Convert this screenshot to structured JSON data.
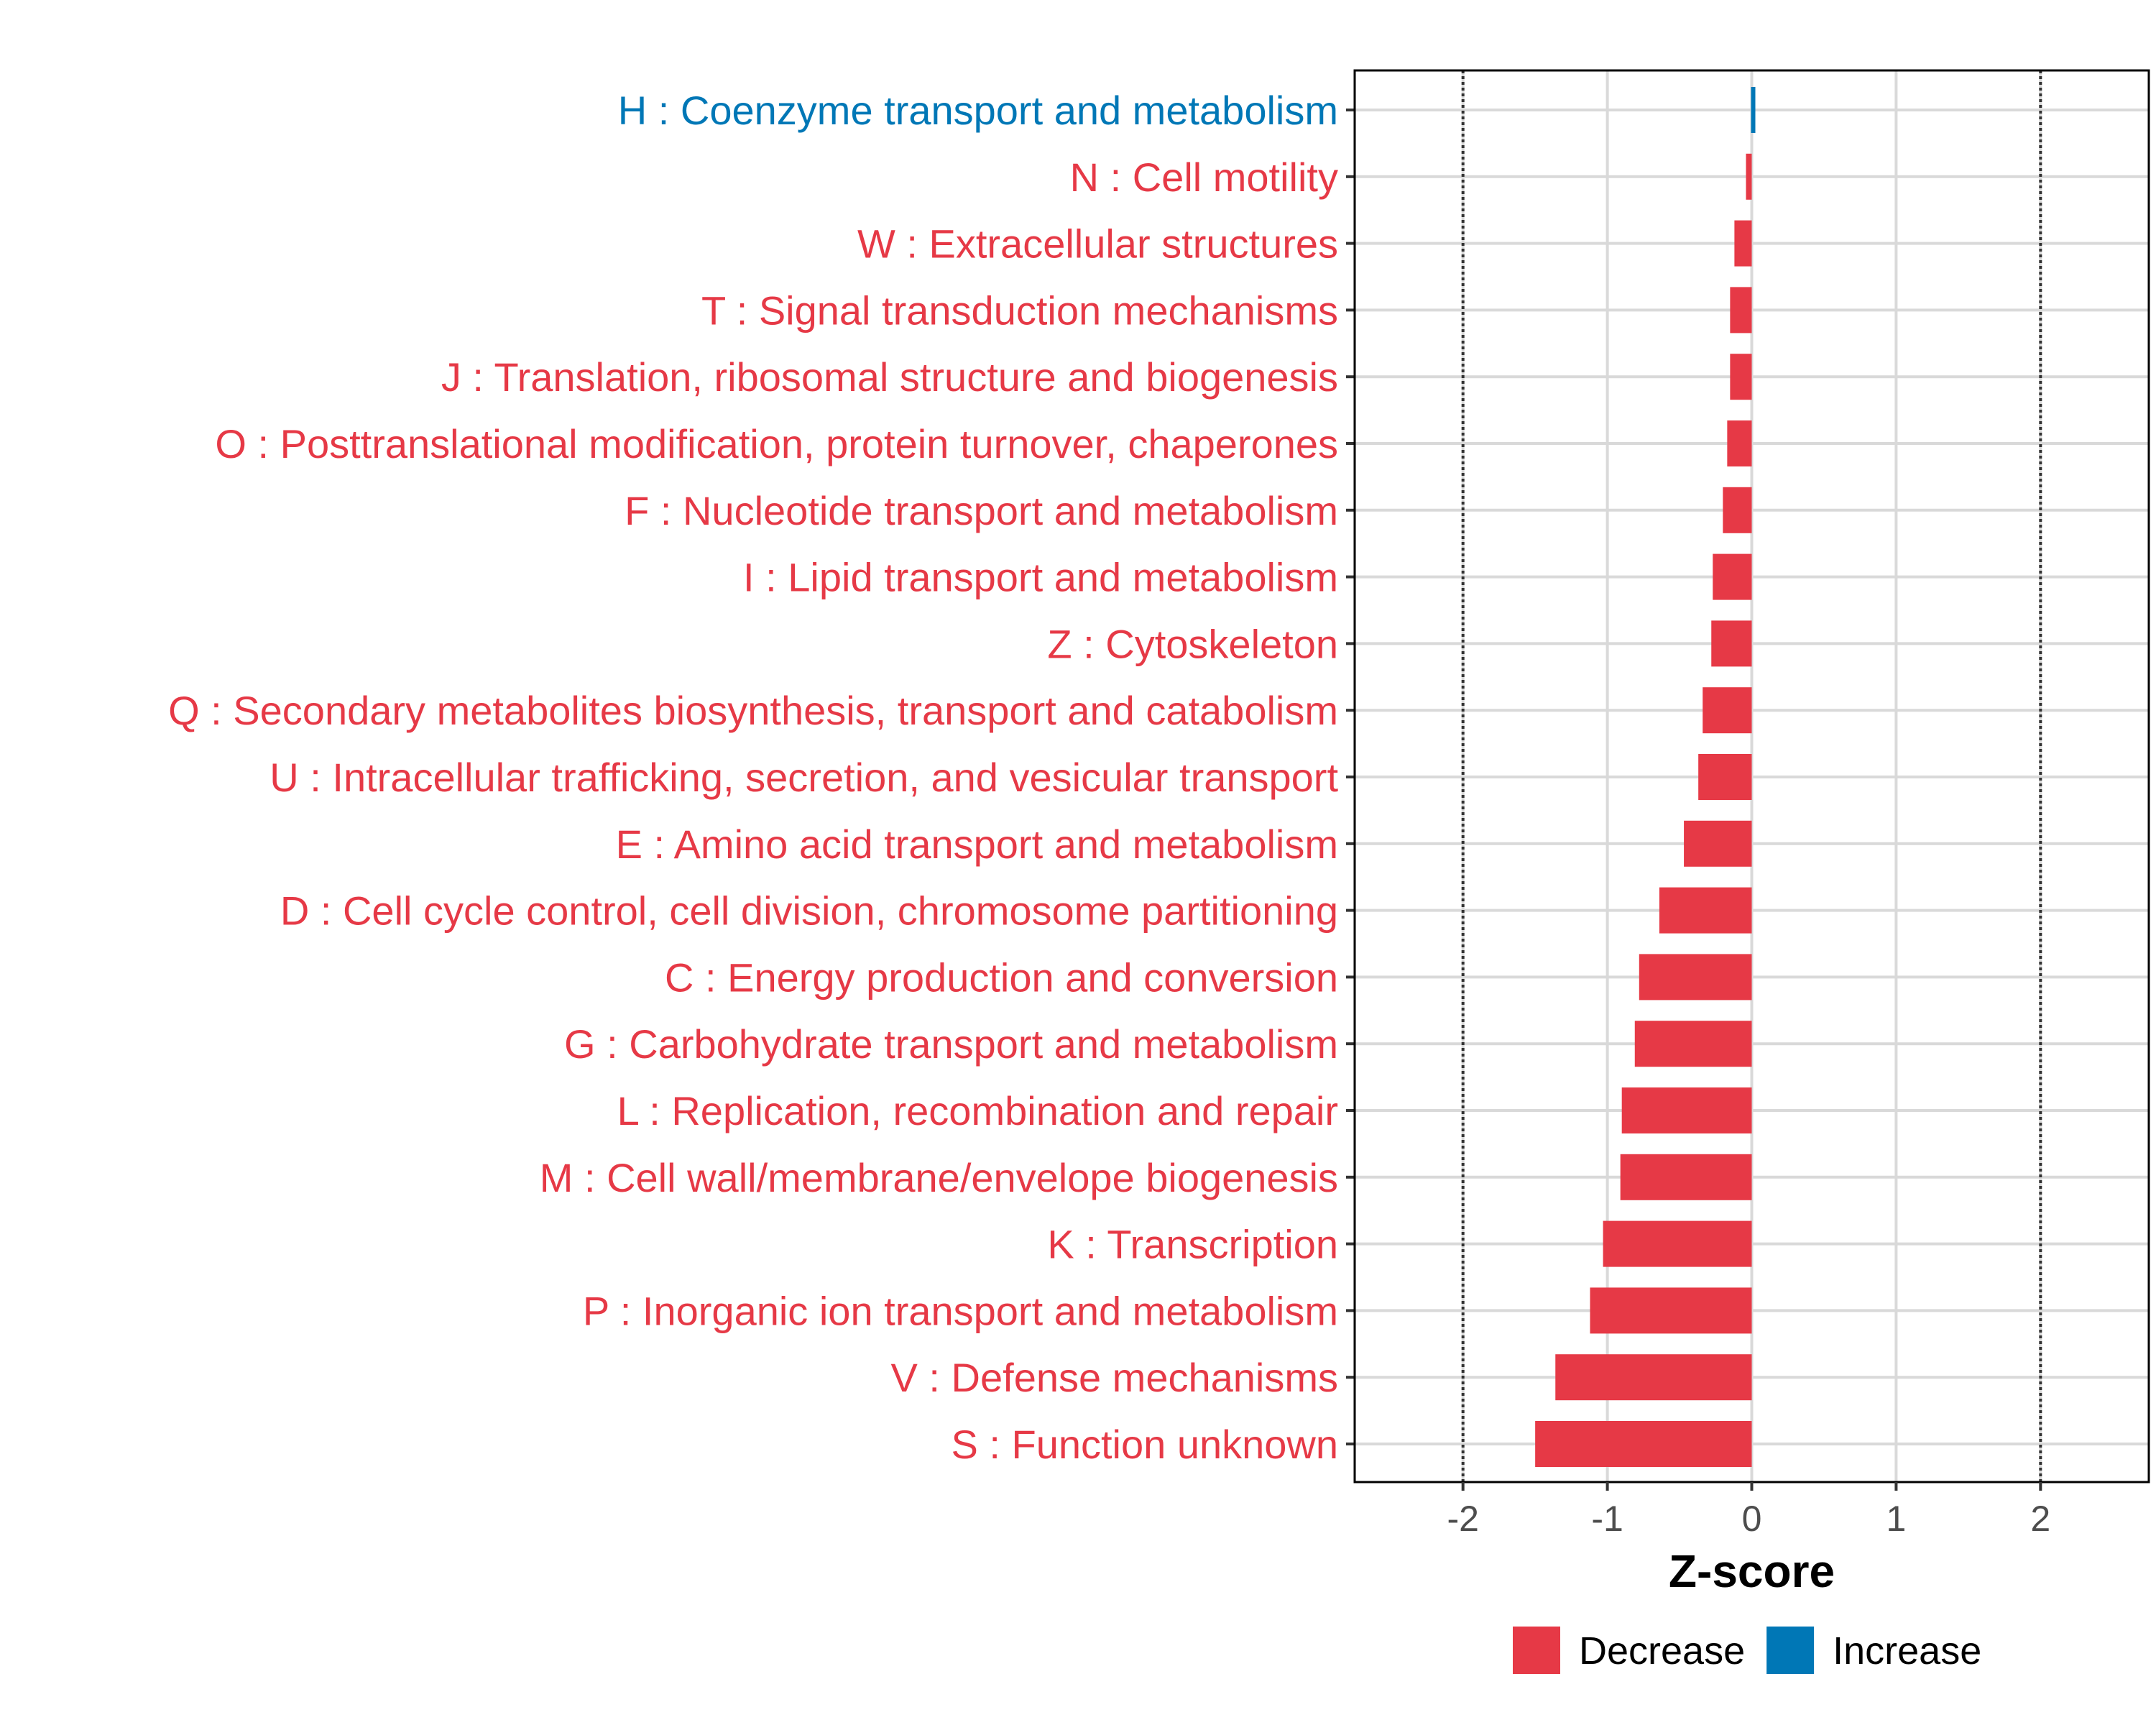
{
  "chart_data": {
    "type": "bar",
    "orientation": "horizontal",
    "xlabel": "Z-score",
    "xlim": [
      -2.75,
      2.75
    ],
    "xticks": [
      -2,
      -1,
      0,
      1,
      2
    ],
    "xtick_labels": [
      "-2",
      "-1",
      "0",
      "1",
      "2"
    ],
    "reference_lines": [
      -2,
      2
    ],
    "grid": true,
    "categories": [
      "H : Coenzyme transport and metabolism",
      "N : Cell motility",
      "W : Extracellular structures",
      "T : Signal transduction mechanisms",
      "J : Translation, ribosomal structure and biogenesis",
      "O : Posttranslational modification, protein turnover, chaperones",
      "F : Nucleotide transport and metabolism",
      "I : Lipid transport and metabolism",
      "Z : Cytoskeleton",
      "Q : Secondary metabolites biosynthesis, transport and catabolism",
      "U : Intracellular trafficking, secretion, and vesicular transport",
      "E : Amino acid transport and metabolism",
      "D : Cell cycle control, cell division, chromosome partitioning",
      "C : Energy production and conversion",
      "G : Carbohydrate transport and metabolism",
      "L : Replication, recombination and repair",
      "M : Cell wall/membrane/envelope biogenesis",
      "K : Transcription",
      "P : Inorganic ion transport and metabolism",
      "V : Defense mechanisms",
      "S : Function unknown"
    ],
    "values": [
      0.02,
      -0.04,
      -0.12,
      -0.15,
      -0.15,
      -0.17,
      -0.2,
      -0.27,
      -0.28,
      -0.34,
      -0.37,
      -0.47,
      -0.64,
      -0.78,
      -0.81,
      -0.9,
      -0.91,
      -1.03,
      -1.12,
      -1.36,
      -1.5
    ],
    "direction": [
      "Increase",
      "Decrease",
      "Decrease",
      "Decrease",
      "Decrease",
      "Decrease",
      "Decrease",
      "Decrease",
      "Decrease",
      "Decrease",
      "Decrease",
      "Decrease",
      "Decrease",
      "Decrease",
      "Decrease",
      "Decrease",
      "Decrease",
      "Decrease",
      "Decrease",
      "Decrease",
      "Decrease"
    ],
    "legend": {
      "placement": "bottom",
      "entries": [
        {
          "label": "Decrease",
          "color": "#E63946"
        },
        {
          "label": "Increase",
          "color": "#0077B6"
        }
      ]
    },
    "colors": {
      "Decrease": "#E63946",
      "Increase": "#0077B6"
    }
  }
}
